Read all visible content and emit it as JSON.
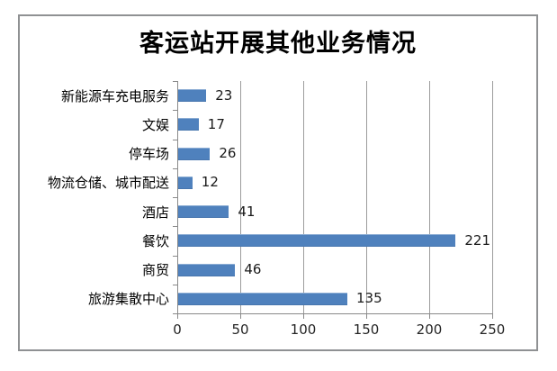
{
  "chart_data": {
    "type": "bar",
    "orientation": "horizontal",
    "title": "客运站开展其他业务情况",
    "categories": [
      "新能源车充电服务",
      "文娱",
      "停车场",
      "物流仓储、城市配送",
      "酒店",
      "餐饮",
      "商贸",
      "旅游集散中心"
    ],
    "values": [
      23,
      17,
      26,
      12,
      41,
      221,
      46,
      135
    ],
    "data_labels": [
      "23",
      "17",
      "26",
      "12",
      "41",
      "221",
      "46",
      "135"
    ],
    "xlabel": "",
    "ylabel": "",
    "xlim": [
      0,
      250
    ],
    "x_ticks": [
      0,
      50,
      100,
      150,
      200,
      250
    ],
    "x_tick_labels": [
      "0",
      "50",
      "100",
      "150",
      "200",
      "250"
    ],
    "grid": "vertical-gridlines-on",
    "legend": "none",
    "bar_color": "#4f81bd",
    "gridline_color": "#9c9c9c",
    "axis_color": "#8a8a8a",
    "frame_border_color": "#8f9193",
    "background_color": "#ffffff"
  }
}
